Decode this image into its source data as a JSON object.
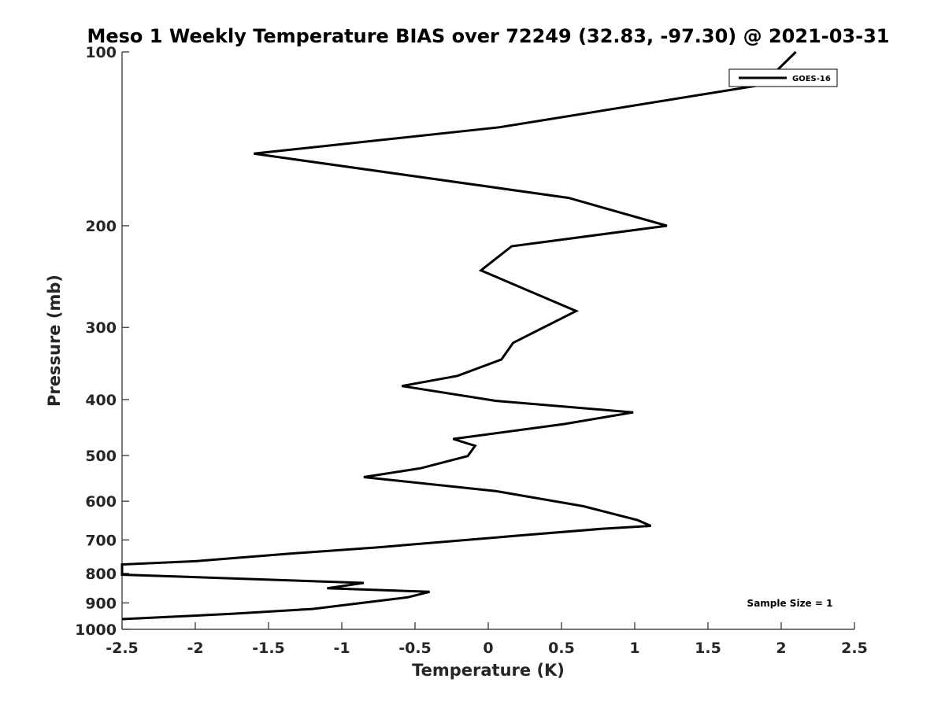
{
  "chart_data": {
    "type": "line",
    "title": "Meso 1 Weekly Temperature BIAS over 72249 (32.83, -97.30) @ 2021-03-31",
    "xlabel": "Temperature (K)",
    "ylabel": "Pressure (mb)",
    "xlim": [
      -2.5,
      2.5
    ],
    "ylim": [
      1000,
      100
    ],
    "yscale": "log",
    "y_reversed": true,
    "x_ticks": [
      "-2.5",
      "-2",
      "-1.5",
      "-1",
      "-0.5",
      "0",
      "0.5",
      "1",
      "1.5",
      "2",
      "2.5"
    ],
    "y_ticks": [
      "100",
      "200",
      "300",
      "400",
      "500",
      "600",
      "700",
      "800",
      "900",
      "1000"
    ],
    "grid": false,
    "legend": {
      "placement": "top-right",
      "entries": [
        "GOES-16"
      ]
    },
    "annotation": "Sample Size = 1",
    "series": [
      {
        "name": "GOES-16",
        "color": "#000000",
        "points": [
          [
            2.1,
            100
          ],
          [
            1.87,
            114
          ],
          [
            0.08,
            135
          ],
          [
            -1.6,
            150
          ],
          [
            0.55,
            179
          ],
          [
            1.22,
            200
          ],
          [
            0.16,
            217
          ],
          [
            -0.05,
            239
          ],
          [
            0.6,
            281
          ],
          [
            0.17,
            319
          ],
          [
            0.09,
            341
          ],
          [
            -0.21,
            364
          ],
          [
            -0.59,
            379
          ],
          [
            0.05,
            402
          ],
          [
            0.99,
            421
          ],
          [
            0.52,
            441
          ],
          [
            -0.24,
            468
          ],
          [
            -0.09,
            481
          ],
          [
            -0.14,
            501
          ],
          [
            -0.46,
            526
          ],
          [
            -0.85,
            545
          ],
          [
            0.05,
            576
          ],
          [
            0.65,
            612
          ],
          [
            1.02,
            647
          ],
          [
            1.11,
            662
          ],
          [
            0.77,
            670
          ],
          [
            0.21,
            688
          ],
          [
            -0.75,
            721
          ],
          [
            -1.37,
            740
          ],
          [
            -2.0,
            762
          ],
          [
            -2.5,
            772
          ],
          [
            -2.5,
            804
          ],
          [
            -0.85,
            831
          ],
          [
            -1.1,
            849
          ],
          [
            -0.4,
            861
          ],
          [
            -0.55,
            880
          ],
          [
            -1.2,
            922
          ],
          [
            -1.75,
            940
          ],
          [
            -2.5,
            960
          ]
        ]
      }
    ]
  }
}
